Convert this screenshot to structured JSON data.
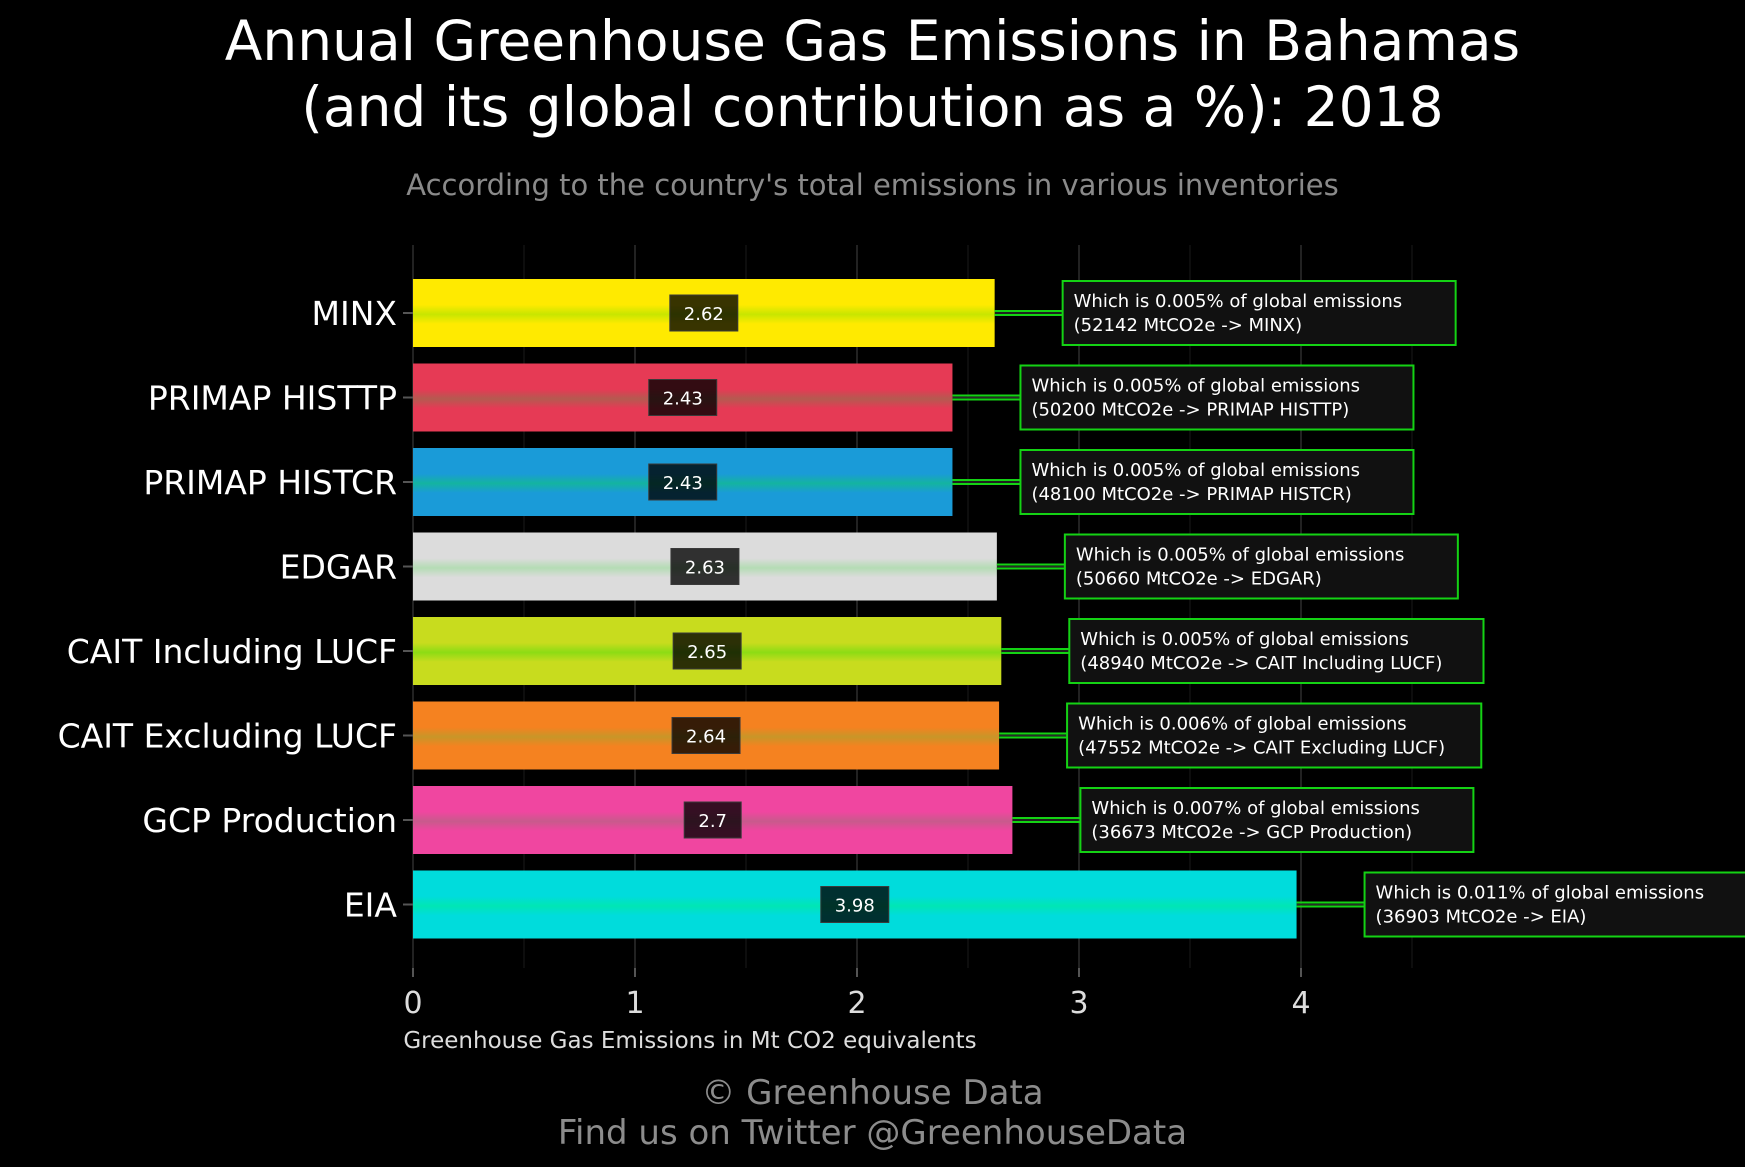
{
  "chart_data": {
    "type": "bar",
    "orientation": "horizontal",
    "title_line1": "Annual Greenhouse Gas Emissions in Bahamas",
    "title_line2": "(and its global contribution as a %): 2018",
    "subtitle": "According to the country's total emissions in various inventories",
    "xlabel": "Greenhouse Gas Emissions in Mt CO2 equivalents",
    "ylabel": "",
    "xlim": [
      0,
      4.5
    ],
    "xticks": [
      "0",
      "1",
      "2",
      "3",
      "4"
    ],
    "grid": true,
    "categories": [
      "MINX",
      "PRIMAP HISTTP",
      "PRIMAP HISTCR",
      "EDGAR",
      "CAIT Including LUCF",
      "CAIT Excluding LUCF",
      "GCP Production",
      "EIA"
    ],
    "values": [
      2.62,
      2.43,
      2.43,
      2.63,
      2.65,
      2.64,
      2.7,
      3.98
    ],
    "value_labels": [
      "2.62",
      "2.43",
      "2.43",
      "2.63",
      "2.65",
      "2.64",
      "2.7",
      "3.98"
    ],
    "colors": [
      "#ffea00",
      "#e63a55",
      "#1a9bd8",
      "#dcdcdc",
      "#c8dc1e",
      "#f58220",
      "#f046a0",
      "#00dcdc"
    ],
    "stripe_colors": [
      "#c8e600",
      "#b45a50",
      "#14b4a0",
      "#b4dcb4",
      "#8cdc14",
      "#c89628",
      "#c85a8c",
      "#00e6b4"
    ],
    "annotations": [
      {
        "line1": "Which is 0.005% of global emissions",
        "line2": "(52142 MtCO2e -> MINX)"
      },
      {
        "line1": "Which is 0.005% of global emissions",
        "line2": "(50200 MtCO2e -> PRIMAP HISTTP)"
      },
      {
        "line1": "Which is 0.005% of global emissions",
        "line2": "(48100 MtCO2e -> PRIMAP HISTCR)"
      },
      {
        "line1": "Which is 0.005% of global emissions",
        "line2": "(50660 MtCO2e -> EDGAR)"
      },
      {
        "line1": "Which is 0.005% of global emissions",
        "line2": "(48940 MtCO2e -> CAIT Including LUCF)"
      },
      {
        "line1": "Which is 0.006% of global emissions",
        "line2": "(47552 MtCO2e -> CAIT Excluding LUCF)"
      },
      {
        "line1": "Which is 0.007% of global emissions",
        "line2": "(36673 MtCO2e -> GCP Production)"
      },
      {
        "line1": "Which is 0.011% of global emissions",
        "line2": "(36903 MtCO2e -> EIA)"
      }
    ],
    "annotation_border_color": "#14d214",
    "text_color": "#ffffff",
    "muted_color": "#8a8a8a"
  },
  "footer": {
    "line1": "© Greenhouse Data",
    "line2": "Find us on Twitter @GreenhouseData"
  }
}
